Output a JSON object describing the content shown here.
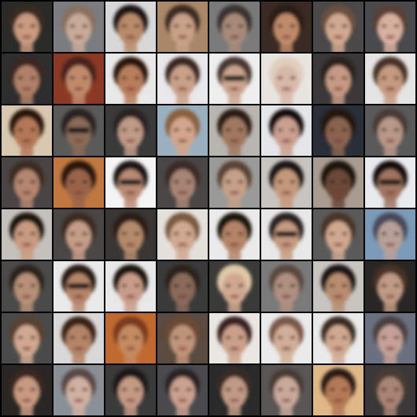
{
  "grid": {
    "rows": 8,
    "cols": 8,
    "separator_color": "#000000",
    "tiles": [
      {
        "bg": "#2a2a28",
        "skin": "#c99a80",
        "hair": "#3a2a20",
        "glasses": false
      },
      {
        "bg": "#7a7c80",
        "skin": "#c8aa98",
        "hair": "#8a7060",
        "glasses": false
      },
      {
        "bg": "#d8d8d8",
        "skin": "#b98a6a",
        "hair": "#1e1612",
        "glasses": false
      },
      {
        "bg": "#a88868",
        "skin": "#c9a088",
        "hair": "#3a2a22",
        "glasses": false
      },
      {
        "bg": "#7a7a7a",
        "skin": "#a88a78",
        "hair": "#3a3232",
        "glasses": false
      },
      {
        "bg": "#3a2a24",
        "skin": "#c08a6a",
        "hair": "#2a1a14",
        "glasses": false
      },
      {
        "bg": "#4a4848",
        "skin": "#d2a890",
        "hair": "#6a5040",
        "glasses": false
      },
      {
        "bg": "#4a4a4c",
        "skin": "#d8b0a0",
        "hair": "#5a4034",
        "glasses": false
      },
      {
        "bg": "#2e2e2e",
        "skin": "#b08068",
        "hair": "#3a2822",
        "glasses": false
      },
      {
        "bg": "#8a3a24",
        "skin": "#c08a6a",
        "hair": "#4a241a",
        "glasses": false
      },
      {
        "bg": "#e8e8e8",
        "skin": "#b87e5c",
        "hair": "#2a1810",
        "glasses": false
      },
      {
        "bg": "#e8e8ea",
        "skin": "#c9a088",
        "hair": "#3a2820",
        "glasses": false
      },
      {
        "bg": "#eeeeee",
        "skin": "#caa48e",
        "hair": "#4a3830",
        "glasses": true
      },
      {
        "bg": "#e8e4e0",
        "skin": "#d8b8a8",
        "hair": "#e0cfc0",
        "glasses": false
      },
      {
        "bg": "#3a3838",
        "skin": "#c69a84",
        "hair": "#2a201c",
        "glasses": false
      },
      {
        "bg": "#e4e4e4",
        "skin": "#c49a80",
        "hair": "#4a3226",
        "glasses": false
      },
      {
        "bg": "#d8c8b0",
        "skin": "#b47858",
        "hair": "#2a1810",
        "glasses": false
      },
      {
        "bg": "#5a5a58",
        "skin": "#8a6a58",
        "hair": "#2a2222",
        "glasses": true
      },
      {
        "bg": "#3a3a3a",
        "skin": "#c09a88",
        "hair": "#2a2020",
        "glasses": false
      },
      {
        "bg": "#9ab0c0",
        "skin": "#d2a68c",
        "hair": "#8a6040",
        "glasses": false
      },
      {
        "bg": "#b8b4b0",
        "skin": "#a07860",
        "hair": "#2a1c14",
        "glasses": false
      },
      {
        "bg": "#e4e6ea",
        "skin": "#caa090",
        "hair": "#141010",
        "glasses": false
      },
      {
        "bg": "#2a2e38",
        "skin": "#8a6450",
        "hair": "#201810",
        "glasses": false
      },
      {
        "bg": "#5a5a5a",
        "skin": "#b89888",
        "hair": "#4a3a34",
        "glasses": false
      },
      {
        "bg": "#4a4444",
        "skin": "#b48670",
        "hair": "#3a2a22",
        "glasses": false
      },
      {
        "bg": "#c07840",
        "skin": "#9a6448",
        "hair": "#2a1810",
        "glasses": false
      },
      {
        "bg": "#f4f4f4",
        "skin": "#b88a74",
        "hair": "#1a1412",
        "glasses": true
      },
      {
        "bg": "#4a4646",
        "skin": "#a88474",
        "hair": "#3a2a26",
        "glasses": false
      },
      {
        "bg": "#9a9a98",
        "skin": "#c4a088",
        "hair": "#5a4434",
        "glasses": false
      },
      {
        "bg": "#c8c4c0",
        "skin": "#c4987c",
        "hair": "#1e1612",
        "glasses": false
      },
      {
        "bg": "#a89c90",
        "skin": "#6a4838",
        "hair": "#1a1210",
        "glasses": false
      },
      {
        "bg": "#e8eaee",
        "skin": "#a07460",
        "hair": "#141010",
        "glasses": true
      },
      {
        "bg": "#c4c0bc",
        "skin": "#c89a80",
        "hair": "#1e1410",
        "glasses": false
      },
      {
        "bg": "#4a4644",
        "skin": "#c49c88",
        "hair": "#3a2a22",
        "glasses": false
      },
      {
        "bg": "#3a3634",
        "skin": "#b48a6c",
        "hair": "#2a1c16",
        "glasses": false
      },
      {
        "bg": "#e4e0dc",
        "skin": "#d0a890",
        "hair": "#7a5a40",
        "glasses": false
      },
      {
        "bg": "#eaeaea",
        "skin": "#b48468",
        "hair": "#1a1210",
        "glasses": false
      },
      {
        "bg": "#e8e8e8",
        "skin": "#c49a80",
        "hair": "#2a2020",
        "glasses": true
      },
      {
        "bg": "#5a5a5a",
        "skin": "#d0a890",
        "hair": "#4a3428",
        "glasses": false
      },
      {
        "bg": "#7a9ab8",
        "skin": "#b8a098",
        "hair": "#4a4a58",
        "glasses": false
      },
      {
        "bg": "#4a4a48",
        "skin": "#b89078",
        "hair": "#2a221e",
        "glasses": false
      },
      {
        "bg": "#eaeaea",
        "skin": "#b48468",
        "hair": "#2a1e18",
        "glasses": true
      },
      {
        "bg": "#e8e8e8",
        "skin": "#c89c88",
        "hair": "#1a1210",
        "glasses": false
      },
      {
        "bg": "#3a3a3a",
        "skin": "#8a6a5a",
        "hair": "#2a201c",
        "glasses": false
      },
      {
        "bg": "#3a3a38",
        "skin": "#d0a890",
        "hair": "#e0c8a8",
        "glasses": false
      },
      {
        "bg": "#7a7a7a",
        "skin": "#b09080",
        "hair": "#5a4a40",
        "glasses": false
      },
      {
        "bg": "#c8c4c0",
        "skin": "#b88c70",
        "hair": "#1e1612",
        "glasses": false
      },
      {
        "bg": "#2a2624",
        "skin": "#c09a84",
        "hair": "#4a3228",
        "glasses": false
      },
      {
        "bg": "#4a4a4a",
        "skin": "#d0a890",
        "hair": "#5a4030",
        "glasses": false
      },
      {
        "bg": "#d8d8d8",
        "skin": "#b48468",
        "hair": "#3a2418",
        "glasses": false
      },
      {
        "bg": "#c06a30",
        "skin": "#c48a60",
        "hair": "#7a3a1a",
        "glasses": false
      },
      {
        "bg": "#5a4a40",
        "skin": "#c0947a",
        "hair": "#6a4a34",
        "glasses": false
      },
      {
        "bg": "#eae6e2",
        "skin": "#caa08a",
        "hair": "#3a2420",
        "glasses": false
      },
      {
        "bg": "#eaeaea",
        "skin": "#d2ae98",
        "hair": "#7a5848",
        "glasses": false
      },
      {
        "bg": "#eaeaea",
        "skin": "#d0a890",
        "hair": "#3a2a24",
        "glasses": false
      },
      {
        "bg": "#6a7080",
        "skin": "#c4a098",
        "hair": "#4a4040",
        "glasses": false
      },
      {
        "bg": "#2a2624",
        "skin": "#c89a80",
        "hair": "#3a2820",
        "glasses": false
      },
      {
        "bg": "#8a9098",
        "skin": "#d0b0a0",
        "hair": "#5a4a44",
        "glasses": false
      },
      {
        "bg": "#3a3a3a",
        "skin": "#c49a84",
        "hair": "#1e1612",
        "glasses": false
      },
      {
        "bg": "#4a4a4e",
        "skin": "#caa090",
        "hair": "#2a2220",
        "glasses": false
      },
      {
        "bg": "#2a2a2a",
        "skin": "#c09a84",
        "hair": "#3a2c26",
        "glasses": false
      },
      {
        "bg": "#5a5656",
        "skin": "#c8a89a",
        "hair": "#4a3a36",
        "glasses": false
      },
      {
        "bg": "#e0b888",
        "skin": "#b47a58",
        "hair": "#2a1a14",
        "glasses": false
      },
      {
        "bg": "#3a3838",
        "skin": "#a88474",
        "hair": "#4a3a34",
        "glasses": false
      }
    ]
  }
}
